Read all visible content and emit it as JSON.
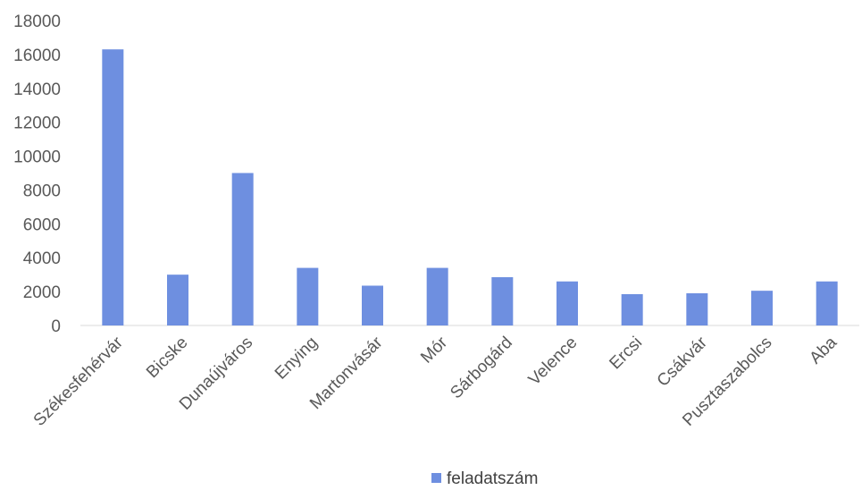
{
  "chart_data": {
    "type": "bar",
    "title": "",
    "xlabel": "",
    "ylabel": "",
    "categories": [
      "Székesfehérvár",
      "Bicske",
      "Dunaújváros",
      "Enying",
      "Martonvásár",
      "Mór",
      "Sárbogárd",
      "Velence",
      "Ercsi",
      "Csákvár",
      "Pusztaszabolcs",
      "Aba"
    ],
    "series": [
      {
        "name": "feladatszám",
        "color": "#6E8FE0",
        "values": [
          16300,
          3000,
          9000,
          3400,
          2350,
          3400,
          2850,
          2600,
          1850,
          1900,
          2050,
          2600
        ]
      }
    ],
    "ylim": [
      0,
      18000
    ],
    "yticks": [
      "0",
      "2000",
      "4000",
      "6000",
      "8000",
      "10000",
      "12000",
      "14000",
      "16000",
      "18000"
    ],
    "grid": false,
    "legend_position": "bottom"
  }
}
